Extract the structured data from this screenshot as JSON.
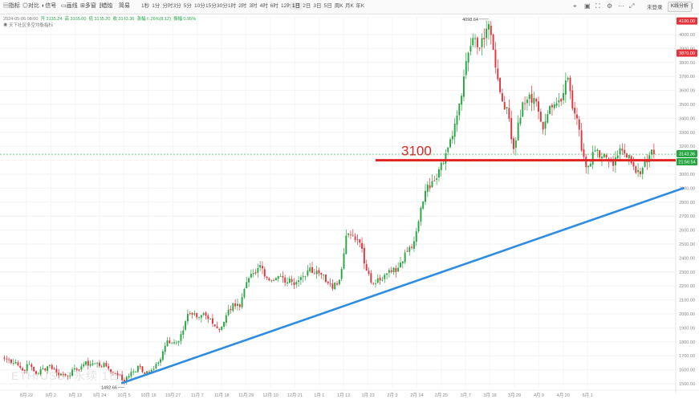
{
  "toolbar": {
    "left_items": [
      {
        "name": "indicator-button",
        "icon": "indicator-icon",
        "glyph": "▤",
        "label": "指标"
      },
      {
        "name": "compare-button",
        "icon": "compare-icon",
        "glyph": "◎",
        "label": "对比"
      },
      {
        "name": "signal-button",
        "icon": "signal-icon",
        "glyph": "◐",
        "label": "信号"
      },
      {
        "name": "draw-button",
        "icon": "draw-icon",
        "glyph": "▭",
        "label": "画线"
      },
      {
        "name": "multi-chart-button",
        "icon": "multi-chart-icon",
        "glyph": "⊞",
        "label": "多窗"
      },
      {
        "name": "chart-type-button",
        "icon": "candle-icon",
        "glyph": "⫿",
        "label": "蜡烛"
      },
      {
        "name": "chart-type-button",
        "icon": "chevron-down-icon",
        "glyph": "",
        "label": "简易"
      }
    ],
    "intervals": [
      "1秒",
      "1分",
      "分时",
      "3分",
      "5分",
      "10分",
      "15分",
      "30分",
      "1时",
      "2时",
      "3时",
      "4时",
      "6时",
      "12时",
      "1日",
      "2日",
      "3日",
      "5日",
      "周K",
      "月K",
      "年K"
    ],
    "active_interval": "1日",
    "right_icons": [
      {
        "name": "screenshot-icon",
        "glyph": "⌖"
      },
      {
        "name": "image-icon",
        "glyph": "▣"
      },
      {
        "name": "fullscreen-icon",
        "glyph": "⛶"
      },
      {
        "name": "settings-icon",
        "glyph": "⚙"
      },
      {
        "name": "more-icon",
        "glyph": "⋯"
      },
      {
        "name": "expand-icon",
        "glyph": "⤢"
      }
    ],
    "user_label": "未登录",
    "analysis_button": "K线分析",
    "share_icon": "share-icon"
  },
  "info": {
    "date": "2024-05-06 08:00",
    "open": "开 3135.24",
    "high": "高 3165.00",
    "low": "低 3135.20",
    "close": "收 3143.36",
    "change": "涨幅 0.26%(8.12)",
    "amplitude": "振幅 0.95%"
  },
  "indicator": {
    "icon": "eye-icon",
    "label": "天下社区多空均衡指标"
  },
  "watermark": "ETH/USDT永续 1日",
  "colors": {
    "up": "#26a541",
    "down": "#e4323b",
    "support_line": "#2e8de0",
    "resistance_line": "#e02424",
    "price_badge": "#26a541",
    "high_badge": "#e4323b"
  },
  "annotations": {
    "resistance_label": "3100",
    "high_label": "4098.64",
    "low_label": "1492.66"
  },
  "badges": {
    "top": "4100.00",
    "high_mark": "3870.00",
    "last_price": "3143.36",
    "countdown": "21:56:54"
  },
  "chart_data": {
    "type": "candlestick",
    "title": "ETH/USDT永续 1日",
    "ylim": [
      1492,
      4100
    ],
    "grid": true,
    "y_ticks": [
      1500,
      1600,
      1700,
      1800,
      1900,
      2000,
      2100,
      2200,
      2300,
      2400,
      2500,
      2600,
      2700,
      2800,
      2900,
      3000,
      3100,
      3200,
      3300,
      3400,
      3500,
      3600,
      3700,
      3800,
      3900,
      4000
    ],
    "x_tick_labels": [
      "8月 22",
      "9月 2",
      "9月 13",
      "9月 24",
      "10月 5",
      "10月 16",
      "10月 27",
      "11月 7",
      "11月 18",
      "11月 29",
      "12月 10",
      "12月 21",
      "1月 1",
      "1月 12",
      "1月 23",
      "2月 3",
      "2月 14",
      "2月 25",
      "3月 7",
      "3月 18",
      "3月 29",
      "4月 9",
      "4月 20",
      "5月 1"
    ],
    "anchor_closes": [
      [
        0,
        1680
      ],
      [
        5,
        1655
      ],
      [
        8,
        1595
      ],
      [
        11,
        1640
      ],
      [
        14,
        1570
      ],
      [
        20,
        1635
      ],
      [
        23,
        1580
      ],
      [
        27,
        1560
      ],
      [
        32,
        1600
      ],
      [
        35,
        1640
      ],
      [
        40,
        1645
      ],
      [
        45,
        1625
      ],
      [
        48,
        1580
      ],
      [
        51,
        1562
      ],
      [
        53,
        1515
      ],
      [
        56,
        1585
      ],
      [
        60,
        1620
      ],
      [
        62,
        1570
      ],
      [
        64,
        1580
      ],
      [
        69,
        1675
      ],
      [
        72,
        1810
      ],
      [
        76,
        1795
      ],
      [
        78,
        1855
      ],
      [
        81,
        2000
      ],
      [
        85,
        1975
      ],
      [
        88,
        2005
      ],
      [
        92,
        1930
      ],
      [
        95,
        1885
      ],
      [
        98,
        1990
      ],
      [
        101,
        2075
      ],
      [
        104,
        2050
      ],
      [
        108,
        2255
      ],
      [
        111,
        2290
      ],
      [
        113,
        2350
      ],
      [
        117,
        2240
      ],
      [
        121,
        2270
      ],
      [
        125,
        2225
      ],
      [
        127,
        2230
      ],
      [
        130,
        2240
      ],
      [
        134,
        2310
      ],
      [
        137,
        2290
      ],
      [
        141,
        2280
      ],
      [
        143,
        2220
      ],
      [
        145,
        2180
      ],
      [
        148,
        2245
      ],
      [
        151,
        2560
      ],
      [
        153,
        2565
      ],
      [
        155,
        2530
      ],
      [
        157,
        2510
      ],
      [
        160,
        2310
      ],
      [
        162,
        2225
      ],
      [
        165,
        2255
      ],
      [
        168,
        2280
      ],
      [
        171,
        2300
      ],
      [
        174,
        2330
      ],
      [
        177,
        2440
      ],
      [
        181,
        2520
      ],
      [
        184,
        2760
      ],
      [
        186,
        2880
      ],
      [
        189,
        2950
      ],
      [
        192,
        3035
      ],
      [
        195,
        3150
      ],
      [
        197,
        3250
      ],
      [
        200,
        3420
      ],
      [
        203,
        3700
      ],
      [
        205,
        3870
      ],
      [
        207,
        3975
      ],
      [
        210,
        3900
      ],
      [
        212,
        3965
      ],
      [
        214,
        4075
      ],
      [
        216,
        3890
      ],
      [
        218,
        3680
      ],
      [
        220,
        3520
      ],
      [
        222,
        3480
      ],
      [
        224,
        3250
      ],
      [
        225,
        3180
      ],
      [
        227,
        3370
      ],
      [
        229,
        3515
      ],
      [
        232,
        3570
      ],
      [
        235,
        3520
      ],
      [
        238,
        3320
      ],
      [
        240,
        3430
      ],
      [
        243,
        3500
      ],
      [
        245,
        3530
      ],
      [
        247,
        3580
      ],
      [
        249,
        3690
      ],
      [
        251,
        3470
      ],
      [
        253,
        3400
      ],
      [
        255,
        3170
      ],
      [
        257,
        3050
      ],
      [
        259,
        3075
      ],
      [
        261,
        3170
      ],
      [
        263,
        3120
      ],
      [
        265,
        3145
      ],
      [
        267,
        3095
      ],
      [
        269,
        3060
      ],
      [
        271,
        3135
      ],
      [
        273,
        3170
      ],
      [
        275,
        3120
      ],
      [
        277,
        3080
      ],
      [
        279,
        3010
      ],
      [
        281,
        3000
      ],
      [
        283,
        3100
      ],
      [
        285,
        3135
      ],
      [
        287,
        3143.36
      ]
    ],
    "resistance": {
      "value": 3100,
      "label": "3100"
    },
    "trendline": {
      "from": [
        52,
        1505
      ],
      "to": [
        300,
        2900
      ]
    },
    "high": {
      "index": 214,
      "value": 4098.64
    },
    "low": {
      "index": 53,
      "value": 1492.66
    },
    "last_close": 3143.36
  }
}
